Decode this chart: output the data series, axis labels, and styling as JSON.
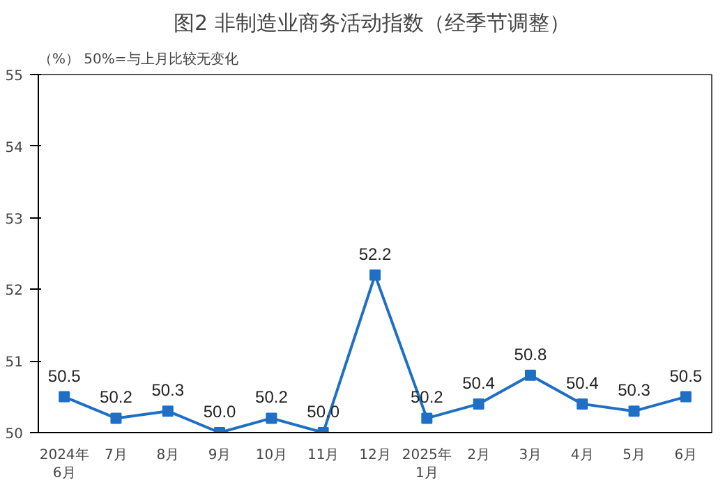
{
  "chart_data": {
    "type": "line",
    "title": "图2  非制造业商务活动指数（经季节调整）",
    "ylabel": "（%）",
    "annotations": [
      "50%=与上月比较无变化"
    ],
    "categories": [
      "2024年\n6月",
      "7月",
      "8月",
      "9月",
      "10月",
      "11月",
      "12月",
      "2025年\n1月",
      "2月",
      "3月",
      "4月",
      "5月",
      "6月"
    ],
    "series": [
      {
        "color": "#1f6fc5",
        "values": [
          50.5,
          50.2,
          50.3,
          50.0,
          50.2,
          50.0,
          52.2,
          50.2,
          50.4,
          50.8,
          50.4,
          50.3,
          50.5
        ],
        "value_labels": [
          "50.5",
          "50.2",
          "50.3",
          "50.0",
          "50.2",
          "50.0",
          "52.2",
          "50.2",
          "50.4",
          "50.8",
          "50.4",
          "50.3",
          "50.5"
        ]
      }
    ],
    "ylim": [
      50,
      55
    ],
    "yticks": [
      50,
      51,
      52,
      53,
      54,
      55
    ],
    "grid": false,
    "marker": "square",
    "line_style": "solid"
  }
}
